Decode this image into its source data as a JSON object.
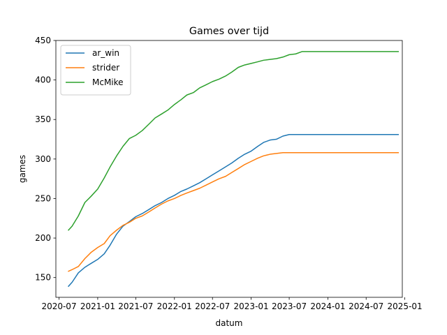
{
  "chart_data": {
    "type": "line",
    "title": "Games over tijd",
    "xlabel": "datum",
    "ylabel": "games",
    "x_type": "date",
    "xlim": [
      "2020-06-16",
      "2024-12-20"
    ],
    "ylim": [
      125,
      450
    ],
    "x_ticks": [
      {
        "date": "2020-07-01",
        "label": "2020-07"
      },
      {
        "date": "2021-01-01",
        "label": "2021-01"
      },
      {
        "date": "2021-07-01",
        "label": "2021-07"
      },
      {
        "date": "2022-01-01",
        "label": "2022-01"
      },
      {
        "date": "2022-07-01",
        "label": "2022-07"
      },
      {
        "date": "2023-01-01",
        "label": "2023-01"
      },
      {
        "date": "2023-07-01",
        "label": "2023-07"
      },
      {
        "date": "2024-01-01",
        "label": "2024-01"
      },
      {
        "date": "2024-07-01",
        "label": "2024-07"
      },
      {
        "date": "2025-01-01",
        "label": "2025-01"
      }
    ],
    "y_ticks": [
      150,
      200,
      250,
      300,
      350,
      400,
      450
    ],
    "grid": false,
    "legend_position": "top-left",
    "series": [
      {
        "name": "ar_win",
        "color": "#1f77b4",
        "points": [
          [
            "2020-08-15",
            139
          ],
          [
            "2020-09-01",
            144
          ],
          [
            "2020-10-01",
            156
          ],
          [
            "2020-11-01",
            163
          ],
          [
            "2020-12-01",
            168
          ],
          [
            "2021-01-01",
            173
          ],
          [
            "2021-02-01",
            180
          ],
          [
            "2021-03-01",
            191
          ],
          [
            "2021-04-01",
            205
          ],
          [
            "2021-05-01",
            215
          ],
          [
            "2021-06-01",
            221
          ],
          [
            "2021-07-01",
            227
          ],
          [
            "2021-08-01",
            231
          ],
          [
            "2021-09-01",
            236
          ],
          [
            "2021-10-01",
            241
          ],
          [
            "2021-11-01",
            245
          ],
          [
            "2021-12-01",
            250
          ],
          [
            "2022-01-01",
            254
          ],
          [
            "2022-02-01",
            259
          ],
          [
            "2022-03-01",
            262
          ],
          [
            "2022-04-01",
            266
          ],
          [
            "2022-05-01",
            270
          ],
          [
            "2022-06-01",
            275
          ],
          [
            "2022-07-01",
            280
          ],
          [
            "2022-08-01",
            285
          ],
          [
            "2022-09-01",
            290
          ],
          [
            "2022-10-01",
            295
          ],
          [
            "2022-11-01",
            301
          ],
          [
            "2022-12-01",
            306
          ],
          [
            "2023-01-01",
            310
          ],
          [
            "2023-02-01",
            316
          ],
          [
            "2023-03-01",
            321
          ],
          [
            "2023-04-01",
            324
          ],
          [
            "2023-05-01",
            325
          ],
          [
            "2023-06-01",
            329
          ],
          [
            "2023-07-01",
            331
          ],
          [
            "2024-12-01",
            331
          ]
        ]
      },
      {
        "name": "strider",
        "color": "#ff7f0e",
        "points": [
          [
            "2020-08-15",
            158
          ],
          [
            "2020-09-01",
            160
          ],
          [
            "2020-10-01",
            164
          ],
          [
            "2020-11-01",
            174
          ],
          [
            "2020-12-01",
            182
          ],
          [
            "2021-01-01",
            188
          ],
          [
            "2021-02-01",
            193
          ],
          [
            "2021-03-01",
            203
          ],
          [
            "2021-04-01",
            210
          ],
          [
            "2021-05-01",
            216
          ],
          [
            "2021-06-01",
            220
          ],
          [
            "2021-07-01",
            225
          ],
          [
            "2021-08-01",
            228
          ],
          [
            "2021-09-01",
            233
          ],
          [
            "2021-10-01",
            238
          ],
          [
            "2021-11-01",
            243
          ],
          [
            "2021-12-01",
            247
          ],
          [
            "2022-01-01",
            250
          ],
          [
            "2022-02-01",
            254
          ],
          [
            "2022-03-01",
            257
          ],
          [
            "2022-04-01",
            260
          ],
          [
            "2022-05-01",
            263
          ],
          [
            "2022-06-01",
            267
          ],
          [
            "2022-07-01",
            271
          ],
          [
            "2022-08-01",
            275
          ],
          [
            "2022-09-01",
            278
          ],
          [
            "2022-10-01",
            283
          ],
          [
            "2022-11-01",
            288
          ],
          [
            "2022-12-01",
            293
          ],
          [
            "2023-01-01",
            297
          ],
          [
            "2023-02-01",
            301
          ],
          [
            "2023-03-01",
            304
          ],
          [
            "2023-04-01",
            306
          ],
          [
            "2023-05-01",
            307
          ],
          [
            "2023-06-01",
            308
          ],
          [
            "2024-12-01",
            308
          ]
        ]
      },
      {
        "name": "McMike",
        "color": "#2ca02c",
        "points": [
          [
            "2020-08-15",
            210
          ],
          [
            "2020-09-01",
            215
          ],
          [
            "2020-10-01",
            228
          ],
          [
            "2020-11-01",
            245
          ],
          [
            "2020-12-01",
            253
          ],
          [
            "2021-01-01",
            262
          ],
          [
            "2021-02-01",
            276
          ],
          [
            "2021-03-01",
            290
          ],
          [
            "2021-04-01",
            304
          ],
          [
            "2021-05-01",
            316
          ],
          [
            "2021-06-01",
            326
          ],
          [
            "2021-07-01",
            330
          ],
          [
            "2021-08-01",
            336
          ],
          [
            "2021-09-01",
            344
          ],
          [
            "2021-10-01",
            352
          ],
          [
            "2021-11-01",
            357
          ],
          [
            "2021-12-01",
            362
          ],
          [
            "2022-01-01",
            369
          ],
          [
            "2022-02-01",
            375
          ],
          [
            "2022-03-01",
            381
          ],
          [
            "2022-04-01",
            384
          ],
          [
            "2022-05-01",
            390
          ],
          [
            "2022-06-01",
            394
          ],
          [
            "2022-07-01",
            398
          ],
          [
            "2022-08-01",
            401
          ],
          [
            "2022-09-01",
            405
          ],
          [
            "2022-10-01",
            410
          ],
          [
            "2022-11-01",
            416
          ],
          [
            "2022-12-01",
            419
          ],
          [
            "2023-01-01",
            421
          ],
          [
            "2023-02-01",
            423
          ],
          [
            "2023-03-01",
            425
          ],
          [
            "2023-04-01",
            426
          ],
          [
            "2023-05-01",
            427
          ],
          [
            "2023-06-01",
            429
          ],
          [
            "2023-07-01",
            432
          ],
          [
            "2023-08-01",
            433
          ],
          [
            "2023-09-01",
            436
          ],
          [
            "2024-12-01",
            436
          ]
        ]
      }
    ]
  }
}
